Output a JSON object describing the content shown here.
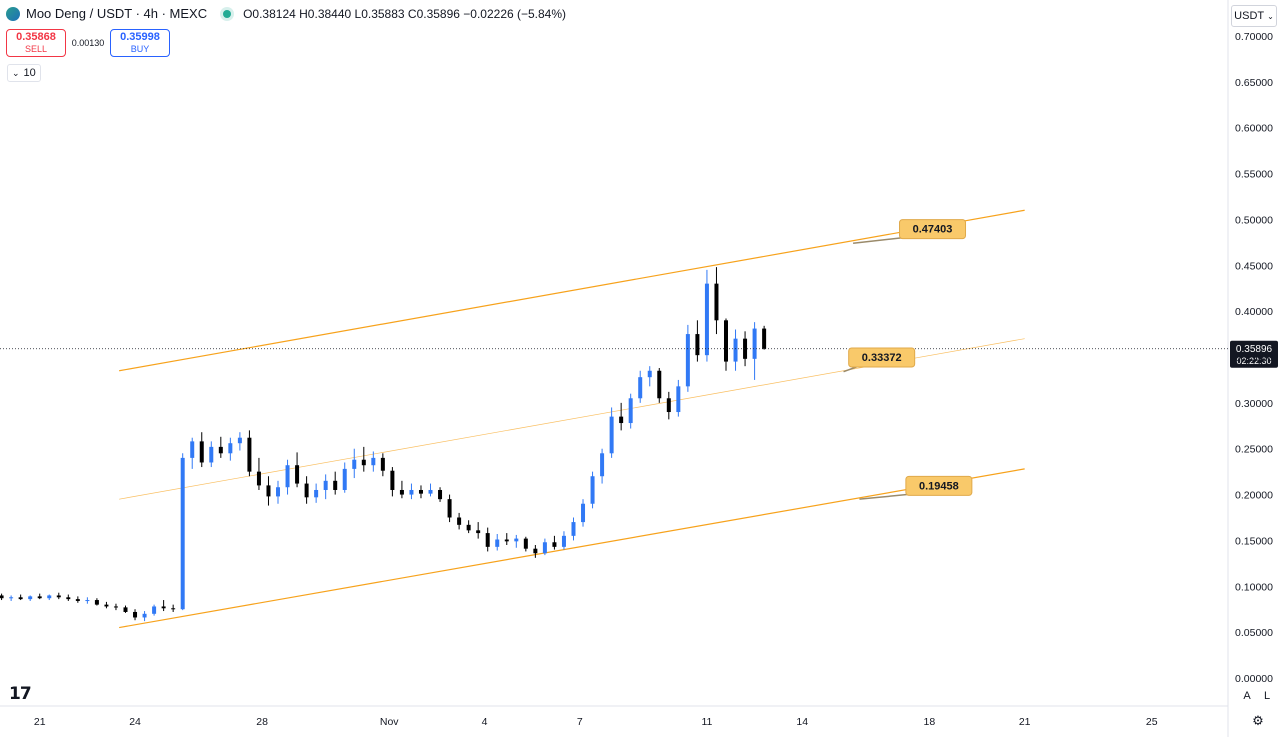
{
  "header": {
    "symbol": "Moo Deng / USDT · 4h · MEXC",
    "ohlc": "O0.38124 H0.38440 L0.35883 C0.35896 −0.02226 (−5.84%)",
    "icon": "coin-logo-icon",
    "status_icon": "market-open-dot-icon"
  },
  "trade": {
    "sell_price": "0.35868",
    "sell_label": "SELL",
    "spread": "0.00130",
    "buy_price": "0.35998",
    "buy_label": "BUY"
  },
  "interval_toggle": {
    "label": "10",
    "icon": "chevron-down-icon"
  },
  "currency": {
    "label": "USDT",
    "icon": "chevron-down-icon"
  },
  "logo": {
    "text": "17"
  },
  "scale_buttons": {
    "auto": "A",
    "log": "L"
  },
  "settings": {
    "icon": "gear-icon"
  },
  "colors": {
    "up": "#3179f5",
    "down": "#000000",
    "channel": "#f7a21b",
    "label_bg": "#f9c96a"
  },
  "chart_data": {
    "type": "candlestick",
    "title": "",
    "ylim": [
      0,
      0.7
    ],
    "y_ticks": [
      "0.70000",
      "0.65000",
      "0.60000",
      "0.55000",
      "0.50000",
      "0.45000",
      "0.40000",
      "0.35000",
      "0.30000",
      "0.25000",
      "0.20000",
      "0.15000",
      "0.10000",
      "0.05000",
      "0.00000"
    ],
    "x_ticks": [
      {
        "label": "21",
        "day": 21
      },
      {
        "label": "24",
        "day": 24
      },
      {
        "label": "28",
        "day": 28
      },
      {
        "label": "Nov",
        "day": 32
      },
      {
        "label": "4",
        "day": 35
      },
      {
        "label": "7",
        "day": 38
      },
      {
        "label": "11",
        "day": 42
      },
      {
        "label": "14",
        "day": 45
      },
      {
        "label": "18",
        "day": 49
      },
      {
        "label": "21",
        "day": 52
      },
      {
        "label": "25",
        "day": 56
      }
    ],
    "x_range_days": [
      19.75,
      58.4
    ],
    "last_price": {
      "value": 0.35896,
      "label": "0.35896",
      "countdown": "02:22:30"
    },
    "candles": [
      {
        "day": 19.8,
        "o": 0.09,
        "h": 0.092,
        "l": 0.085,
        "c": 0.087
      },
      {
        "day": 20.1,
        "o": 0.087,
        "h": 0.09,
        "l": 0.084,
        "c": 0.088
      },
      {
        "day": 20.4,
        "o": 0.088,
        "h": 0.091,
        "l": 0.085,
        "c": 0.086
      },
      {
        "day": 20.7,
        "o": 0.086,
        "h": 0.09,
        "l": 0.084,
        "c": 0.089
      },
      {
        "day": 21.0,
        "o": 0.089,
        "h": 0.092,
        "l": 0.086,
        "c": 0.087
      },
      {
        "day": 21.3,
        "o": 0.087,
        "h": 0.091,
        "l": 0.085,
        "c": 0.09
      },
      {
        "day": 21.6,
        "o": 0.09,
        "h": 0.093,
        "l": 0.086,
        "c": 0.088
      },
      {
        "day": 21.9,
        "o": 0.088,
        "h": 0.091,
        "l": 0.084,
        "c": 0.086
      },
      {
        "day": 22.2,
        "o": 0.086,
        "h": 0.089,
        "l": 0.082,
        "c": 0.084
      },
      {
        "day": 22.5,
        "o": 0.084,
        "h": 0.088,
        "l": 0.081,
        "c": 0.085
      },
      {
        "day": 22.8,
        "o": 0.085,
        "h": 0.087,
        "l": 0.079,
        "c": 0.08
      },
      {
        "day": 23.1,
        "o": 0.08,
        "h": 0.083,
        "l": 0.076,
        "c": 0.078
      },
      {
        "day": 23.4,
        "o": 0.078,
        "h": 0.081,
        "l": 0.074,
        "c": 0.077
      },
      {
        "day": 23.7,
        "o": 0.077,
        "h": 0.079,
        "l": 0.071,
        "c": 0.072
      },
      {
        "day": 24.0,
        "o": 0.072,
        "h": 0.075,
        "l": 0.063,
        "c": 0.066
      },
      {
        "day": 24.3,
        "o": 0.066,
        "h": 0.073,
        "l": 0.062,
        "c": 0.07
      },
      {
        "day": 24.6,
        "o": 0.07,
        "h": 0.08,
        "l": 0.068,
        "c": 0.078
      },
      {
        "day": 24.9,
        "o": 0.078,
        "h": 0.085,
        "l": 0.073,
        "c": 0.076
      },
      {
        "day": 25.2,
        "o": 0.076,
        "h": 0.08,
        "l": 0.072,
        "c": 0.075
      },
      {
        "day": 25.5,
        "o": 0.075,
        "h": 0.245,
        "l": 0.074,
        "c": 0.24
      },
      {
        "day": 25.8,
        "o": 0.24,
        "h": 0.262,
        "l": 0.228,
        "c": 0.258
      },
      {
        "day": 26.1,
        "o": 0.258,
        "h": 0.268,
        "l": 0.23,
        "c": 0.235
      },
      {
        "day": 26.4,
        "o": 0.235,
        "h": 0.258,
        "l": 0.23,
        "c": 0.252
      },
      {
        "day": 26.7,
        "o": 0.252,
        "h": 0.263,
        "l": 0.24,
        "c": 0.245
      },
      {
        "day": 27.0,
        "o": 0.245,
        "h": 0.262,
        "l": 0.237,
        "c": 0.256
      },
      {
        "day": 27.3,
        "o": 0.256,
        "h": 0.268,
        "l": 0.248,
        "c": 0.262
      },
      {
        "day": 27.6,
        "o": 0.262,
        "h": 0.27,
        "l": 0.22,
        "c": 0.225
      },
      {
        "day": 27.9,
        "o": 0.225,
        "h": 0.24,
        "l": 0.205,
        "c": 0.21
      },
      {
        "day": 28.2,
        "o": 0.21,
        "h": 0.22,
        "l": 0.188,
        "c": 0.198
      },
      {
        "day": 28.5,
        "o": 0.198,
        "h": 0.215,
        "l": 0.19,
        "c": 0.208
      },
      {
        "day": 28.8,
        "o": 0.208,
        "h": 0.238,
        "l": 0.2,
        "c": 0.232
      },
      {
        "day": 29.1,
        "o": 0.232,
        "h": 0.246,
        "l": 0.208,
        "c": 0.212
      },
      {
        "day": 29.4,
        "o": 0.212,
        "h": 0.22,
        "l": 0.19,
        "c": 0.197
      },
      {
        "day": 29.7,
        "o": 0.197,
        "h": 0.212,
        "l": 0.191,
        "c": 0.205
      },
      {
        "day": 30.0,
        "o": 0.205,
        "h": 0.222,
        "l": 0.195,
        "c": 0.215
      },
      {
        "day": 30.3,
        "o": 0.215,
        "h": 0.225,
        "l": 0.2,
        "c": 0.205
      },
      {
        "day": 30.6,
        "o": 0.205,
        "h": 0.235,
        "l": 0.202,
        "c": 0.228
      },
      {
        "day": 30.9,
        "o": 0.228,
        "h": 0.25,
        "l": 0.218,
        "c": 0.238
      },
      {
        "day": 31.2,
        "o": 0.238,
        "h": 0.252,
        "l": 0.225,
        "c": 0.232
      },
      {
        "day": 31.5,
        "o": 0.232,
        "h": 0.247,
        "l": 0.225,
        "c": 0.24
      },
      {
        "day": 31.8,
        "o": 0.24,
        "h": 0.245,
        "l": 0.22,
        "c": 0.226
      },
      {
        "day": 32.1,
        "o": 0.226,
        "h": 0.23,
        "l": 0.198,
        "c": 0.205
      },
      {
        "day": 32.4,
        "o": 0.205,
        "h": 0.215,
        "l": 0.196,
        "c": 0.2
      },
      {
        "day": 32.7,
        "o": 0.2,
        "h": 0.212,
        "l": 0.195,
        "c": 0.205
      },
      {
        "day": 33.0,
        "o": 0.205,
        "h": 0.21,
        "l": 0.196,
        "c": 0.201
      },
      {
        "day": 33.3,
        "o": 0.201,
        "h": 0.212,
        "l": 0.198,
        "c": 0.205
      },
      {
        "day": 33.6,
        "o": 0.205,
        "h": 0.208,
        "l": 0.192,
        "c": 0.195
      },
      {
        "day": 33.9,
        "o": 0.195,
        "h": 0.2,
        "l": 0.17,
        "c": 0.175
      },
      {
        "day": 34.2,
        "o": 0.175,
        "h": 0.18,
        "l": 0.162,
        "c": 0.167
      },
      {
        "day": 34.5,
        "o": 0.167,
        "h": 0.172,
        "l": 0.158,
        "c": 0.161
      },
      {
        "day": 34.8,
        "o": 0.161,
        "h": 0.17,
        "l": 0.152,
        "c": 0.158
      },
      {
        "day": 35.1,
        "o": 0.158,
        "h": 0.164,
        "l": 0.138,
        "c": 0.143
      },
      {
        "day": 35.4,
        "o": 0.143,
        "h": 0.157,
        "l": 0.139,
        "c": 0.151
      },
      {
        "day": 35.7,
        "o": 0.151,
        "h": 0.158,
        "l": 0.145,
        "c": 0.149
      },
      {
        "day": 36.0,
        "o": 0.149,
        "h": 0.156,
        "l": 0.142,
        "c": 0.152
      },
      {
        "day": 36.3,
        "o": 0.152,
        "h": 0.154,
        "l": 0.138,
        "c": 0.141
      },
      {
        "day": 36.6,
        "o": 0.141,
        "h": 0.145,
        "l": 0.131,
        "c": 0.136
      },
      {
        "day": 36.9,
        "o": 0.136,
        "h": 0.152,
        "l": 0.134,
        "c": 0.148
      },
      {
        "day": 37.2,
        "o": 0.148,
        "h": 0.155,
        "l": 0.14,
        "c": 0.143
      },
      {
        "day": 37.5,
        "o": 0.143,
        "h": 0.16,
        "l": 0.14,
        "c": 0.155
      },
      {
        "day": 37.8,
        "o": 0.155,
        "h": 0.175,
        "l": 0.15,
        "c": 0.17
      },
      {
        "day": 38.1,
        "o": 0.17,
        "h": 0.195,
        "l": 0.165,
        "c": 0.19
      },
      {
        "day": 38.4,
        "o": 0.19,
        "h": 0.225,
        "l": 0.185,
        "c": 0.22
      },
      {
        "day": 38.7,
        "o": 0.22,
        "h": 0.25,
        "l": 0.212,
        "c": 0.245
      },
      {
        "day": 39.0,
        "o": 0.245,
        "h": 0.295,
        "l": 0.24,
        "c": 0.285
      },
      {
        "day": 39.3,
        "o": 0.285,
        "h": 0.3,
        "l": 0.27,
        "c": 0.278
      },
      {
        "day": 39.6,
        "o": 0.278,
        "h": 0.31,
        "l": 0.272,
        "c": 0.305
      },
      {
        "day": 39.9,
        "o": 0.305,
        "h": 0.335,
        "l": 0.3,
        "c": 0.328
      },
      {
        "day": 40.2,
        "o": 0.328,
        "h": 0.34,
        "l": 0.318,
        "c": 0.335
      },
      {
        "day": 40.5,
        "o": 0.335,
        "h": 0.338,
        "l": 0.3,
        "c": 0.305
      },
      {
        "day": 40.8,
        "o": 0.305,
        "h": 0.312,
        "l": 0.282,
        "c": 0.29
      },
      {
        "day": 41.1,
        "o": 0.29,
        "h": 0.325,
        "l": 0.285,
        "c": 0.318
      },
      {
        "day": 41.4,
        "o": 0.318,
        "h": 0.385,
        "l": 0.312,
        "c": 0.375
      },
      {
        "day": 41.7,
        "o": 0.375,
        "h": 0.39,
        "l": 0.345,
        "c": 0.352
      },
      {
        "day": 42.0,
        "o": 0.352,
        "h": 0.445,
        "l": 0.345,
        "c": 0.43
      },
      {
        "day": 42.3,
        "o": 0.43,
        "h": 0.448,
        "l": 0.375,
        "c": 0.39
      },
      {
        "day": 42.6,
        "o": 0.39,
        "h": 0.392,
        "l": 0.335,
        "c": 0.345
      },
      {
        "day": 42.9,
        "o": 0.345,
        "h": 0.38,
        "l": 0.335,
        "c": 0.37
      },
      {
        "day": 43.2,
        "o": 0.37,
        "h": 0.378,
        "l": 0.34,
        "c": 0.348
      },
      {
        "day": 43.5,
        "o": 0.348,
        "h": 0.388,
        "l": 0.325,
        "c": 0.381
      },
      {
        "day": 43.8,
        "o": 0.381,
        "h": 0.384,
        "l": 0.358,
        "c": 0.359
      }
    ],
    "channel_lines": [
      {
        "name": "upper",
        "x0": 23.5,
        "y0": 0.335,
        "x1": 52.0,
        "y1": 0.51
      },
      {
        "name": "middle",
        "x0": 23.5,
        "y0": 0.195,
        "x1": 52.0,
        "y1": 0.37
      },
      {
        "name": "lower",
        "x0": 23.5,
        "y0": 0.055,
        "x1": 52.0,
        "y1": 0.228
      }
    ],
    "annotations": [
      {
        "text": "0.47403",
        "x": 46.6,
        "y": 0.474,
        "dx": 49.1,
        "dy": 0.49
      },
      {
        "text": "0.33372",
        "x": 46.3,
        "y": 0.334,
        "dx": 47.5,
        "dy": 0.35
      },
      {
        "text": "0.19458",
        "x": 46.8,
        "y": 0.195,
        "dx": 49.3,
        "dy": 0.21
      }
    ]
  }
}
